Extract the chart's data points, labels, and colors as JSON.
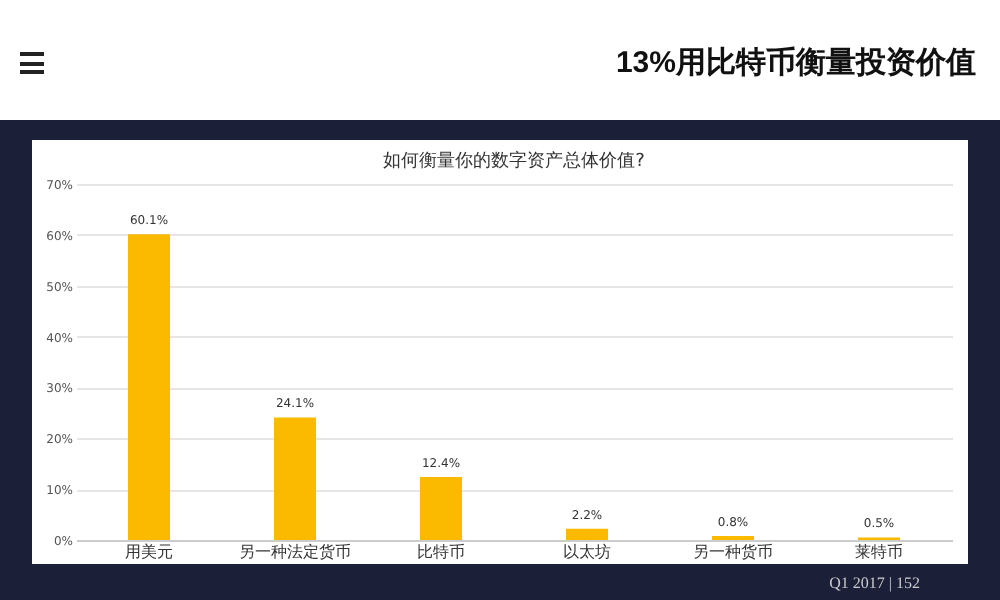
{
  "chart_data": {
    "type": "bar",
    "title": "13%用比特币衡量投资价值",
    "subtitle": "如何衡量你的数字资产总体价值?",
    "categories": [
      "用美元",
      "另一种法定货币",
      "比特币",
      "以太坊",
      "另一种货币",
      "莱特币"
    ],
    "values": [
      60.1,
      24.1,
      12.4,
      2.2,
      0.8,
      0.5
    ],
    "value_labels": [
      "60.1%",
      "24.1%",
      "12.4%",
      "2.2%",
      "0.8%",
      "0.5%"
    ],
    "color": "#fbb900",
    "ylim": [
      0,
      70
    ],
    "yticks": [
      {
        "value": 0,
        "label": "0%"
      },
      {
        "value": 10,
        "label": "10%"
      },
      {
        "value": 20,
        "label": "20%"
      },
      {
        "value": 30,
        "label": "30%"
      },
      {
        "value": 40,
        "label": "40%"
      },
      {
        "value": 50,
        "label": "50%"
      },
      {
        "value": 60,
        "label": "60%"
      },
      {
        "value": 70,
        "label": "70%"
      }
    ],
    "grid": "y",
    "annotations": [
      "Q1 2017 | 152"
    ]
  }
}
